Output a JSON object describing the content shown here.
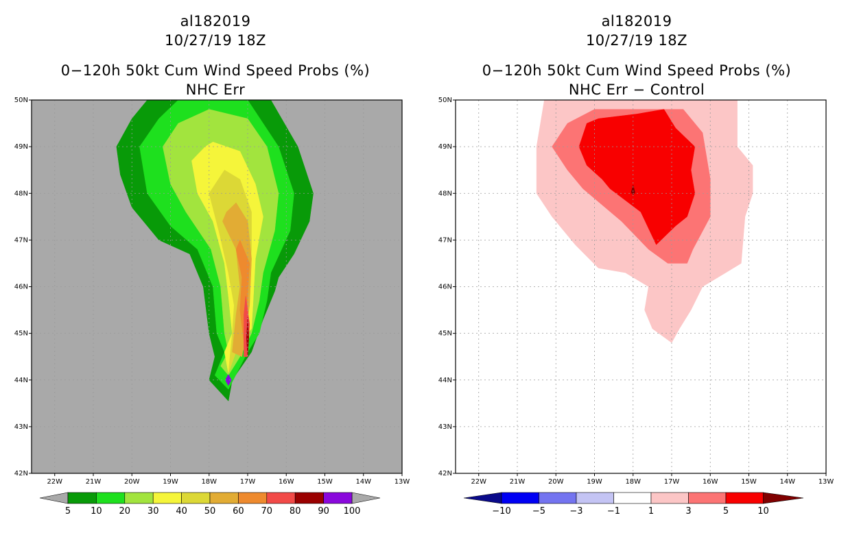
{
  "chart_data": [
    {
      "type": "filled-contour-map",
      "title_lines": [
        "al182019",
        "10/27/19 18Z",
        "0−120h 50kt Cum Wind Speed Probs (%)",
        "NHC Err"
      ],
      "x_ticks": [
        "22W",
        "21W",
        "20W",
        "19W",
        "18W",
        "17W",
        "16W",
        "15W",
        "14W",
        "13W"
      ],
      "y_ticks": [
        "50N",
        "49N",
        "48N",
        "47N",
        "46N",
        "45N",
        "44N",
        "43N",
        "42N"
      ],
      "xlim_deg_west": [
        22.6,
        13.0
      ],
      "ylim_deg_north": [
        42.0,
        50.0
      ],
      "background": "#a9a9a9",
      "colorbar": {
        "labels": [
          "5",
          "10",
          "20",
          "30",
          "40",
          "50",
          "60",
          "70",
          "80",
          "90",
          "100"
        ],
        "colors": [
          "#089a08",
          "#1ee01e",
          "#a2e43e",
          "#f5f53a",
          "#dcd836",
          "#e2ac34",
          "#ee8a2e",
          "#f24a48",
          "#9a0000",
          "#8a08dc"
        ],
        "end_color": "#a9a9a9"
      },
      "contours": [
        {
          "level": 5,
          "color": "#089a08",
          "points": [
            [
              19.6,
              50.0
            ],
            [
              16.4,
              50.0
            ],
            [
              15.7,
              49.0
            ],
            [
              15.3,
              48.0
            ],
            [
              15.4,
              47.4
            ],
            [
              15.8,
              46.7
            ],
            [
              16.2,
              46.2
            ],
            [
              16.3,
              45.9
            ],
            [
              16.6,
              45.3
            ],
            [
              16.9,
              44.6
            ],
            [
              17.4,
              44.0
            ],
            [
              17.5,
              43.55
            ],
            [
              18.0,
              44.0
            ],
            [
              17.85,
              44.5
            ],
            [
              18.0,
              45.0
            ],
            [
              18.15,
              46.0
            ],
            [
              18.5,
              46.7
            ],
            [
              19.3,
              47.0
            ],
            [
              20.0,
              47.7
            ],
            [
              20.3,
              48.4
            ],
            [
              20.4,
              49.0
            ],
            [
              20.0,
              49.6
            ]
          ]
        },
        {
          "level": 10,
          "color": "#1ee01e",
          "points": [
            [
              18.8,
              50.0
            ],
            [
              17.0,
              50.0
            ],
            [
              16.2,
              49.0
            ],
            [
              15.8,
              48.0
            ],
            [
              15.9,
              47.2
            ],
            [
              16.4,
              46.3
            ],
            [
              16.5,
              45.7
            ],
            [
              16.7,
              45.0
            ],
            [
              17.0,
              44.6
            ],
            [
              17.5,
              43.8
            ],
            [
              17.85,
              44.1
            ],
            [
              17.6,
              44.6
            ],
            [
              17.8,
              45.0
            ],
            [
              17.9,
              46.0
            ],
            [
              18.3,
              46.8
            ],
            [
              19.0,
              47.3
            ],
            [
              19.6,
              48.0
            ],
            [
              19.8,
              49.0
            ],
            [
              19.3,
              49.6
            ]
          ]
        },
        {
          "level": 20,
          "color": "#a2e43e",
          "points": [
            [
              18.0,
              49.8
            ],
            [
              17.0,
              49.6
            ],
            [
              16.5,
              49.0
            ],
            [
              16.2,
              48.0
            ],
            [
              16.3,
              47.2
            ],
            [
              16.6,
              46.3
            ],
            [
              16.7,
              45.7
            ],
            [
              16.9,
              45.0
            ],
            [
              17.2,
              44.5
            ],
            [
              17.5,
              44.1
            ],
            [
              17.7,
              44.3
            ],
            [
              17.5,
              44.6
            ],
            [
              17.6,
              45.0
            ],
            [
              17.7,
              46.0
            ],
            [
              17.95,
              46.8
            ],
            [
              18.6,
              47.6
            ],
            [
              19.0,
              48.2
            ],
            [
              19.2,
              49.0
            ],
            [
              18.8,
              49.5
            ]
          ]
        },
        {
          "level": 30,
          "color": "#f5f53a",
          "points": [
            [
              17.9,
              49.1
            ],
            [
              17.2,
              48.9
            ],
            [
              16.8,
              48.2
            ],
            [
              16.6,
              47.5
            ],
            [
              16.8,
              46.6
            ],
            [
              16.85,
              45.8
            ],
            [
              16.9,
              45.1
            ],
            [
              17.3,
              44.7
            ],
            [
              17.5,
              44.15
            ],
            [
              17.6,
              44.6
            ],
            [
              17.4,
              45.0
            ],
            [
              17.5,
              45.8
            ],
            [
              17.6,
              46.5
            ],
            [
              17.9,
              47.4
            ],
            [
              18.3,
              48.0
            ],
            [
              18.45,
              48.7
            ],
            [
              18.1,
              49.0
            ]
          ]
        },
        {
          "level": 40,
          "color": "#dcd836",
          "points": [
            [
              17.6,
              48.5
            ],
            [
              17.2,
              48.3
            ],
            [
              16.9,
              47.6
            ],
            [
              16.9,
              46.8
            ],
            [
              17.0,
              45.9
            ],
            [
              17.0,
              45.2
            ],
            [
              17.3,
              44.6
            ],
            [
              17.5,
              44.15
            ],
            [
              17.4,
              45.0
            ],
            [
              17.35,
              45.6
            ],
            [
              17.5,
              46.3
            ],
            [
              17.75,
              47.2
            ],
            [
              18.0,
              48.0
            ]
          ]
        },
        {
          "level": 50,
          "color": "#e2ac34",
          "points": [
            [
              17.3,
              47.8
            ],
            [
              17.0,
              47.4
            ],
            [
              16.9,
              46.6
            ],
            [
              16.95,
              45.6
            ],
            [
              17.05,
              45.0
            ],
            [
              17.15,
              44.5
            ],
            [
              17.4,
              44.6
            ],
            [
              17.3,
              45.4
            ],
            [
              17.2,
              46.0
            ],
            [
              17.3,
              46.8
            ],
            [
              17.65,
              47.4
            ],
            [
              17.55,
              47.6
            ]
          ]
        },
        {
          "level": 60,
          "color": "#ee8a2e",
          "points": [
            [
              17.2,
              47.0
            ],
            [
              16.95,
              46.5
            ],
            [
              17.0,
              45.8
            ],
            [
              17.05,
              45.2
            ],
            [
              17.1,
              44.8
            ],
            [
              17.2,
              45.5
            ],
            [
              17.15,
              46.2
            ],
            [
              17.3,
              46.8
            ]
          ]
        },
        {
          "level": 70,
          "color": "#f24a48",
          "points": [
            [
              17.05,
              45.8
            ],
            [
              16.95,
              45.2
            ],
            [
              17.0,
              44.5
            ],
            [
              17.1,
              44.5
            ],
            [
              17.1,
              45.0
            ],
            [
              17.1,
              45.4
            ]
          ]
        },
        {
          "level": 80,
          "color": "#9a0000",
          "points": [
            [
              17.0,
              45.35
            ],
            [
              16.97,
              44.9
            ],
            [
              17.0,
              44.5
            ],
            [
              17.03,
              44.9
            ]
          ]
        },
        {
          "level": 90,
          "color": "#8a08dc",
          "points": [
            [
              17.5,
              44.12
            ],
            [
              17.42,
              44.0
            ],
            [
              17.5,
              43.88
            ],
            [
              17.58,
              44.0
            ]
          ]
        }
      ]
    },
    {
      "type": "filled-contour-map",
      "title_lines": [
        "al182019",
        "10/27/19 18Z",
        "0−120h 50kt Cum Wind Speed Probs (%)",
        "NHC Err − Control"
      ],
      "x_ticks": [
        "22W",
        "21W",
        "20W",
        "19W",
        "18W",
        "17W",
        "16W",
        "15W",
        "14W",
        "13W"
      ],
      "y_ticks": [
        "50N",
        "49N",
        "48N",
        "47N",
        "46N",
        "45N",
        "44N",
        "43N",
        "42N"
      ],
      "xlim_deg_west": [
        22.6,
        13.0
      ],
      "ylim_deg_north": [
        42.0,
        50.0
      ],
      "background": "#ffffff",
      "colorbar": {
        "labels": [
          "−10",
          "−5",
          "−3",
          "−1",
          "1",
          "3",
          "5",
          "10"
        ],
        "colors": [
          "#0a0a8a",
          "#0000f4",
          "#7474f0",
          "#c4c4f4",
          "#ffffff",
          "#fcc6c6",
          "#fc7474",
          "#f80000",
          "#800000"
        ]
      },
      "contours": [
        {
          "level": 1,
          "color": "#fcc6c6",
          "points": [
            [
              20.3,
              50.0
            ],
            [
              15.3,
              50.0
            ],
            [
              15.3,
              49.0
            ],
            [
              14.9,
              48.6
            ],
            [
              14.9,
              48.0
            ],
            [
              15.1,
              47.5
            ],
            [
              15.2,
              46.5
            ],
            [
              15.6,
              46.3
            ],
            [
              16.2,
              46.0
            ],
            [
              16.5,
              45.5
            ],
            [
              16.8,
              45.1
            ],
            [
              17.0,
              44.8
            ],
            [
              17.5,
              45.1
            ],
            [
              17.7,
              45.5
            ],
            [
              17.6,
              46.0
            ],
            [
              18.2,
              46.3
            ],
            [
              18.9,
              46.4
            ],
            [
              19.5,
              46.9
            ],
            [
              20.1,
              47.5
            ],
            [
              20.5,
              48.0
            ],
            [
              20.5,
              49.0
            ]
          ]
        },
        {
          "level": 3,
          "color": "#fc7474",
          "points": [
            [
              19.0,
              49.8
            ],
            [
              17.8,
              49.8
            ],
            [
              16.7,
              49.8
            ],
            [
              16.2,
              49.3
            ],
            [
              16.0,
              48.3
            ],
            [
              16.0,
              47.5
            ],
            [
              16.45,
              46.8
            ],
            [
              16.6,
              46.5
            ],
            [
              17.1,
              46.5
            ],
            [
              17.6,
              46.8
            ],
            [
              18.3,
              47.4
            ],
            [
              19.3,
              48.1
            ],
            [
              19.7,
              48.5
            ],
            [
              20.1,
              49.0
            ],
            [
              19.7,
              49.5
            ]
          ]
        },
        {
          "level": 5,
          "color": "#f80000",
          "points": [
            [
              18.9,
              49.6
            ],
            [
              17.9,
              49.7
            ],
            [
              17.2,
              49.8
            ],
            [
              16.9,
              49.4
            ],
            [
              16.4,
              49.0
            ],
            [
              16.5,
              48.5
            ],
            [
              16.4,
              48.0
            ],
            [
              16.6,
              47.5
            ],
            [
              16.9,
              47.3
            ],
            [
              17.4,
              46.9
            ],
            [
              17.8,
              47.6
            ],
            [
              18.6,
              48.1
            ],
            [
              18.8,
              48.3
            ],
            [
              19.2,
              48.6
            ],
            [
              19.4,
              49.0
            ],
            [
              19.2,
              49.5
            ]
          ]
        },
        {
          "level": 10,
          "color": "#800000",
          "points": [
            [
              18.0,
              48.18
            ],
            [
              17.95,
              48.02
            ],
            [
              18.0,
              47.97
            ],
            [
              18.05,
              48.02
            ]
          ]
        }
      ]
    }
  ]
}
